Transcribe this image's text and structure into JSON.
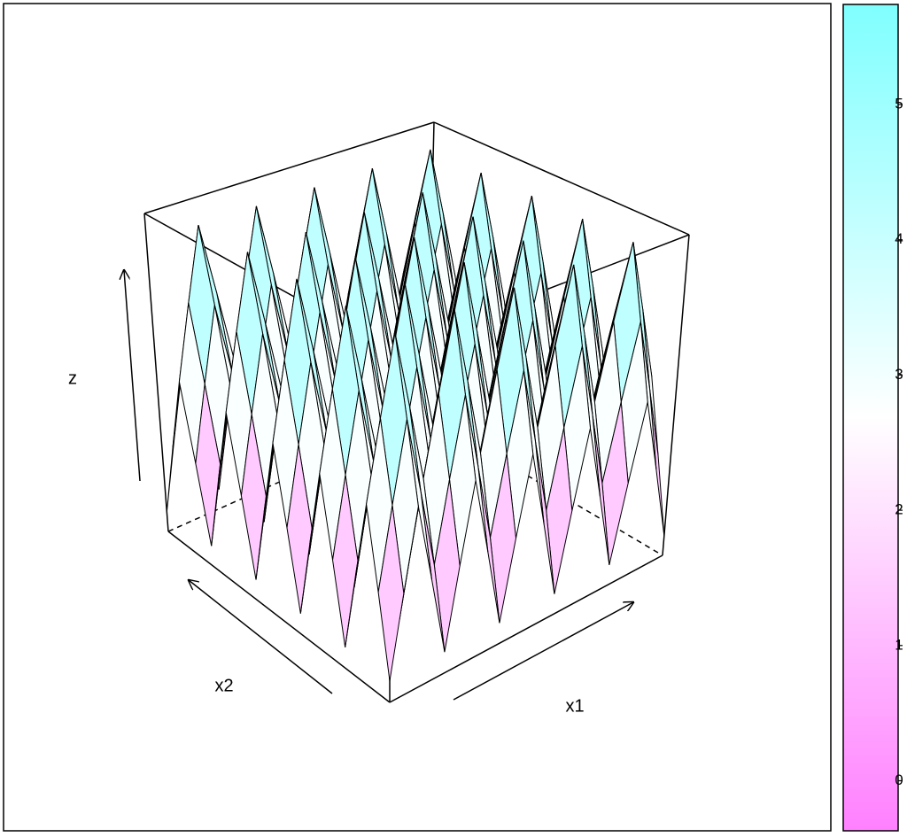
{
  "chart_data": {
    "type": "surface",
    "axis_labels": {
      "x": "x1",
      "y": "x2",
      "z": "z"
    },
    "zlim": [
      -0.37,
      5.74
    ],
    "colors": [
      "#ff80ff",
      "#ffffff",
      "#80ffff"
    ],
    "colorbar": {
      "ticks": [
        0,
        1,
        2,
        3,
        4,
        5
      ]
    },
    "z": [
      [
        0,
        1.4,
        2.8,
        1.4,
        0,
        1.4,
        2.8,
        1.4,
        0,
        1.4,
        2.8,
        1.4,
        0,
        1.4,
        2.8,
        1.4,
        0,
        1.4,
        2.8,
        1.4,
        0
      ],
      [
        1.4,
        2.8,
        4.2,
        2.8,
        1.4,
        2.8,
        4.2,
        2.8,
        1.4,
        2.8,
        4.2,
        2.8,
        1.4,
        2.8,
        4.2,
        2.8,
        1.4,
        2.8,
        4.2,
        2.8,
        1.4
      ],
      [
        2.8,
        4.2,
        5.6,
        4.2,
        2.8,
        4.2,
        5.6,
        4.2,
        2.8,
        4.2,
        5.6,
        4.2,
        2.8,
        4.2,
        5.6,
        4.2,
        2.8,
        4.2,
        5.6,
        4.2,
        2.8
      ],
      [
        1.4,
        2.8,
        4.2,
        2.8,
        1.4,
        2.8,
        4.2,
        2.8,
        1.4,
        2.8,
        4.2,
        2.8,
        1.4,
        2.8,
        4.2,
        2.8,
        1.4,
        2.8,
        4.2,
        2.8,
        1.4
      ],
      [
        0,
        1.4,
        2.8,
        1.4,
        0,
        1.4,
        2.8,
        1.4,
        0,
        1.4,
        2.8,
        1.4,
        0,
        1.4,
        2.8,
        1.4,
        0,
        1.4,
        2.8,
        1.4,
        0
      ],
      [
        1.4,
        2.8,
        4.2,
        2.8,
        1.4,
        2.8,
        4.2,
        2.8,
        1.4,
        2.8,
        4.2,
        2.8,
        1.4,
        2.8,
        4.2,
        2.8,
        1.4,
        2.8,
        4.2,
        2.8,
        1.4
      ],
      [
        2.8,
        4.2,
        5.6,
        4.2,
        2.8,
        4.2,
        5.6,
        4.2,
        2.8,
        4.2,
        5.6,
        4.2,
        2.8,
        4.2,
        5.6,
        4.2,
        2.8,
        4.2,
        5.6,
        4.2,
        2.8
      ],
      [
        1.4,
        2.8,
        4.2,
        2.8,
        1.4,
        2.8,
        4.2,
        2.8,
        1.4,
        2.8,
        4.2,
        2.8,
        1.4,
        2.8,
        4.2,
        2.8,
        1.4,
        2.8,
        4.2,
        2.8,
        1.4
      ],
      [
        0,
        1.4,
        2.8,
        1.4,
        0,
        1.4,
        2.8,
        1.4,
        0,
        1.4,
        2.8,
        1.4,
        0,
        1.4,
        2.8,
        1.4,
        0,
        1.4,
        2.8,
        1.4,
        0
      ],
      [
        1.4,
        2.8,
        4.2,
        2.8,
        1.4,
        2.8,
        4.2,
        2.8,
        1.4,
        2.8,
        4.2,
        2.8,
        1.4,
        2.8,
        4.2,
        2.8,
        1.4,
        2.8,
        4.2,
        2.8,
        1.4
      ],
      [
        2.8,
        4.2,
        5.6,
        4.2,
        2.8,
        4.2,
        5.6,
        4.2,
        2.8,
        4.2,
        5.6,
        4.2,
        2.8,
        4.2,
        5.6,
        4.2,
        2.8,
        4.2,
        5.6,
        4.2,
        2.8
      ],
      [
        1.4,
        2.8,
        4.2,
        2.8,
        1.4,
        2.8,
        4.2,
        2.8,
        1.4,
        2.8,
        4.2,
        2.8,
        1.4,
        2.8,
        4.2,
        2.8,
        1.4,
        2.8,
        4.2,
        2.8,
        1.4
      ],
      [
        0,
        1.4,
        2.8,
        1.4,
        0,
        1.4,
        2.8,
        1.4,
        0,
        1.4,
        2.8,
        1.4,
        0,
        1.4,
        2.8,
        1.4,
        0,
        1.4,
        2.8,
        1.4,
        0
      ],
      [
        1.4,
        2.8,
        4.2,
        2.8,
        1.4,
        2.8,
        4.2,
        2.8,
        1.4,
        2.8,
        4.2,
        2.8,
        1.4,
        2.8,
        4.2,
        2.8,
        1.4,
        2.8,
        4.2,
        2.8,
        1.4
      ],
      [
        2.8,
        4.2,
        5.6,
        4.2,
        2.8,
        4.2,
        5.6,
        4.2,
        2.8,
        4.2,
        5.6,
        4.2,
        2.8,
        4.2,
        5.6,
        4.2,
        2.8,
        4.2,
        5.6,
        4.2,
        2.8
      ],
      [
        1.4,
        2.8,
        4.2,
        2.8,
        1.4,
        2.8,
        4.2,
        2.8,
        1.4,
        2.8,
        4.2,
        2.8,
        1.4,
        2.8,
        4.2,
        2.8,
        1.4,
        2.8,
        4.2,
        2.8,
        1.4
      ],
      [
        0,
        1.4,
        2.8,
        1.4,
        0,
        1.4,
        2.8,
        1.4,
        0,
        1.4,
        2.8,
        1.4,
        0,
        1.4,
        2.8,
        1.4,
        0,
        1.4,
        2.8,
        1.4,
        0
      ],
      [
        1.4,
        2.8,
        4.2,
        2.8,
        1.4,
        2.8,
        4.2,
        2.8,
        1.4,
        2.8,
        4.2,
        2.8,
        1.4,
        2.8,
        4.2,
        2.8,
        1.4,
        2.8,
        4.2,
        2.8,
        1.4
      ],
      [
        2.8,
        4.2,
        5.6,
        4.2,
        2.8,
        4.2,
        5.6,
        4.2,
        2.8,
        4.2,
        5.6,
        4.2,
        2.8,
        4.2,
        5.6,
        4.2,
        2.8,
        4.2,
        5.6,
        4.2,
        2.8
      ],
      [
        1.4,
        2.8,
        4.2,
        2.8,
        1.4,
        2.8,
        4.2,
        2.8,
        1.4,
        2.8,
        4.2,
        2.8,
        1.4,
        2.8,
        4.2,
        2.8,
        1.4,
        2.8,
        4.2,
        2.8,
        1.4
      ],
      [
        0,
        1.4,
        2.8,
        1.4,
        0,
        1.4,
        2.8,
        1.4,
        0,
        1.4,
        2.8,
        1.4,
        0,
        1.4,
        2.8,
        1.4,
        0,
        1.4,
        2.8,
        1.4,
        0
      ]
    ]
  }
}
